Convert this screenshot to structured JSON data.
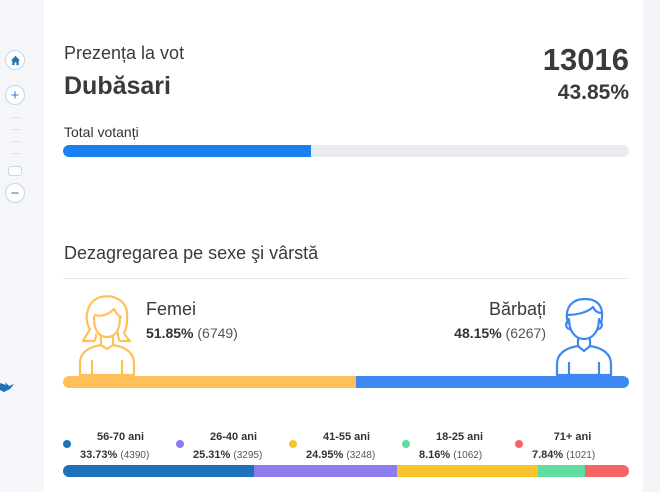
{
  "map": {
    "home_icon": "home-icon",
    "zoom_in": "+",
    "zoom_out": "−"
  },
  "header": {
    "subtitle": "Prezența la vot",
    "region": "Dubăsari",
    "total": "13016",
    "total_percent": "43.85%"
  },
  "turnout": {
    "label": "Total votanți",
    "fraction": 0.4385,
    "color": "#1a7fef",
    "track_color": "#e9ebef"
  },
  "breakdown": {
    "title": "Dezagregarea pe sexe şi vârstă",
    "women": {
      "label": "Femei",
      "percent": "51.85%",
      "count": "(6749)",
      "fraction": 0.5185,
      "color": "#ffc05a",
      "icon": "woman-icon"
    },
    "men": {
      "label": "Bărbați",
      "percent": "48.15%",
      "count": "(6267)",
      "fraction": 0.4815,
      "color": "#3d88f2",
      "icon": "man-icon"
    }
  },
  "age_groups": [
    {
      "label": "56-70 ani",
      "percent": "33.73%",
      "count": "(4390)",
      "fraction": 0.3373,
      "color": "#1e72b8"
    },
    {
      "label": "26-40 ani",
      "percent": "25.31%",
      "count": "(3295)",
      "fraction": 0.2531,
      "color": "#8c7cf0"
    },
    {
      "label": "41-55 ani",
      "percent": "24.95%",
      "count": "(3248)",
      "fraction": 0.2495,
      "color": "#f8c42e"
    },
    {
      "label": "18-25 ani",
      "percent": "8.16%",
      "count": "(1062)",
      "fraction": 0.0816,
      "color": "#5fdc9e"
    },
    {
      "label": "71+ ani",
      "percent": "7.84%",
      "count": "(1021)",
      "fraction": 0.0784,
      "color": "#f56565"
    }
  ]
}
